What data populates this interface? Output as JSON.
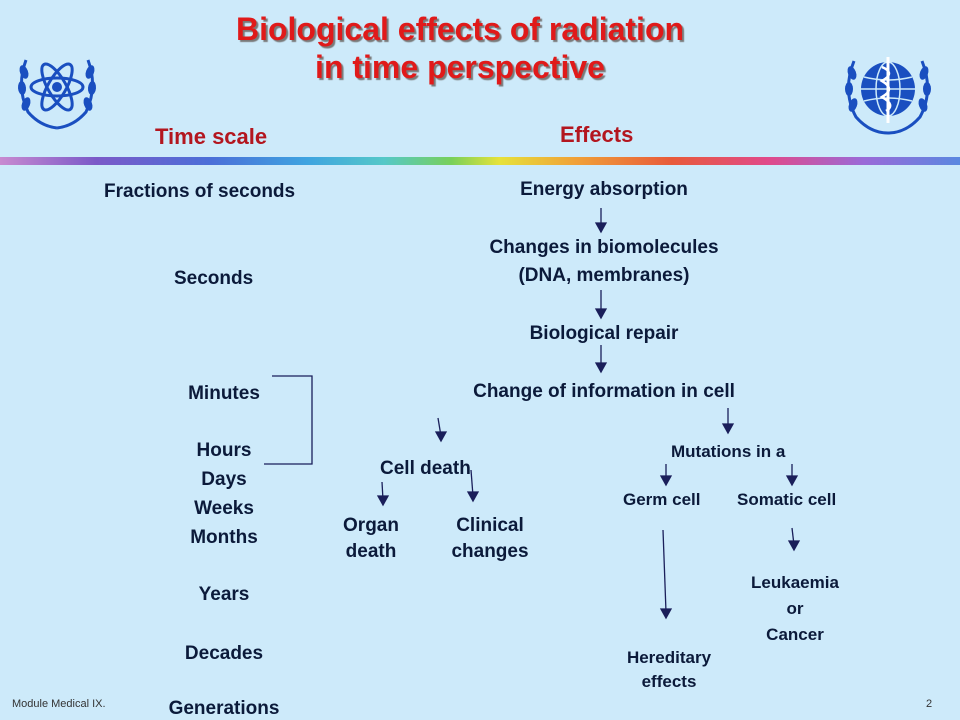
{
  "title": {
    "line1": "Biological effects of radiation",
    "line2": "in time perspective"
  },
  "headers": {
    "time_scale": "Time scale",
    "effects": "Effects"
  },
  "time_scale": {
    "fractions": "Fractions of seconds",
    "seconds": "Seconds",
    "minutes": "Minutes",
    "hours": "Hours",
    "days": "Days",
    "weeks": "Weeks",
    "months": "Months",
    "years": "Years",
    "decades": "Decades",
    "generations": "Generations"
  },
  "effects": {
    "energy_absorption": "Energy absorption",
    "changes_line1": "Changes in biomolecules",
    "changes_line2": "(DNA, membranes)",
    "repair": "Biological repair",
    "info_change": "Change of information in cell",
    "cell_death": "Cell death",
    "organ_line1": "Organ",
    "organ_line2": "death",
    "clinical_line1": "Clinical",
    "clinical_line2": "changes",
    "mutations": "Mutations in a",
    "germ_cell": "Germ cell",
    "somatic_cell": "Somatic cell",
    "leuk_line1": "Leukaemia",
    "leuk_line2": "or",
    "leuk_line3": "Cancer",
    "hered_line1": "Hereditary",
    "hered_line2": "effects"
  },
  "footer": {
    "module": "Module Medical IX.",
    "page": "2"
  },
  "colors": {
    "background": "#cdeafa",
    "title": "#e01a1a",
    "header": "#b3161f",
    "text": "#0b1a3a",
    "logo": "#1a4fc0"
  },
  "icons": {
    "left_logo": "iaea-atom-emblem",
    "right_logo": "who-emblem"
  }
}
